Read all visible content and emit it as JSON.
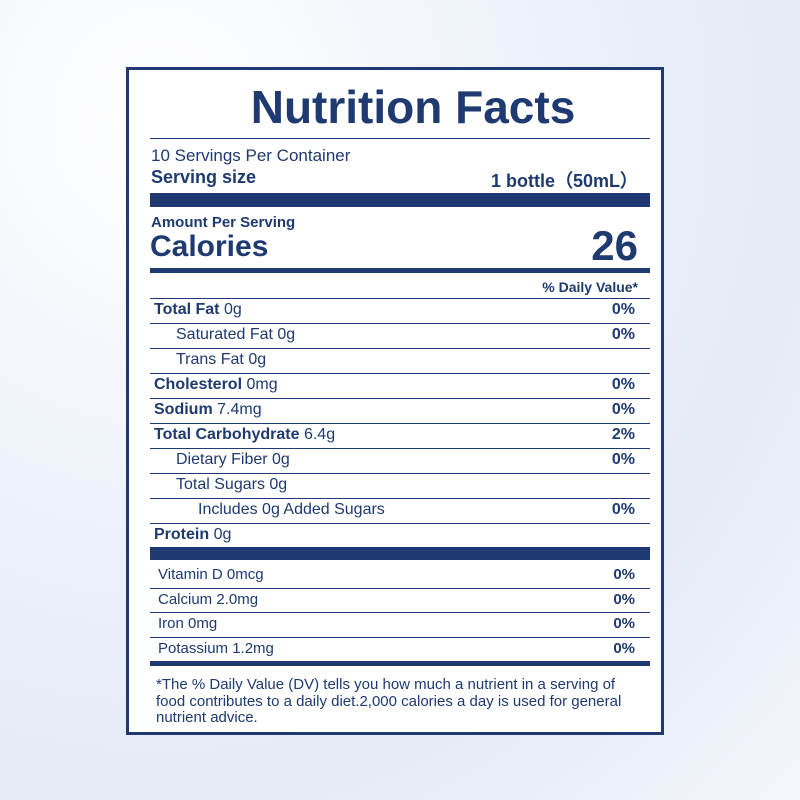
{
  "title": "Nutrition Facts",
  "servings_per_container": "10 Servings Per Container",
  "serving_size": {
    "label": "Serving size",
    "value": "1 bottle（50mL）"
  },
  "amount_per_serving": "Amount Per Serving",
  "calories": {
    "label": "Calories",
    "value": "26"
  },
  "daily_value_header": "% Daily Value*",
  "nutrients": [
    {
      "name": "Total Fat",
      "amount": "0g",
      "dv": "0%"
    },
    {
      "name": "Saturated Fat",
      "amount": "0g",
      "dv": "0%"
    },
    {
      "name": "Trans Fat",
      "amount": "0g"
    },
    {
      "name": "Cholesterol",
      "amount": "0mg",
      "dv": "0%"
    },
    {
      "name": "Sodium",
      "amount": "7.4mg",
      "dv": "0%"
    },
    {
      "name": "Total Carbohydrate",
      "amount": "6.4g",
      "dv": "2%"
    },
    {
      "name": "Dietary Fiber",
      "amount": "0g",
      "dv": "0%"
    },
    {
      "name": "Total Sugars",
      "amount": "0g"
    },
    {
      "name": "Includes 0g Added Sugars",
      "dv": "0%"
    },
    {
      "name": "Protein",
      "amount": "0g"
    }
  ],
  "vitamins": [
    {
      "name": "Vitamin D",
      "amount": "0mcg",
      "dv": "0%"
    },
    {
      "name": "Calcium",
      "amount": "2.0mg",
      "dv": "0%"
    },
    {
      "name": "Iron",
      "amount": "0mg",
      "dv": "0%"
    },
    {
      "name": "Potassium",
      "amount": "1.2mg",
      "dv": "0%"
    }
  ],
  "footnote": "*The % Daily Value (DV) tells you how much a nutrient in a serving of food contributes to a daily diet.2,000 calories a day is used for general nutrient advice."
}
